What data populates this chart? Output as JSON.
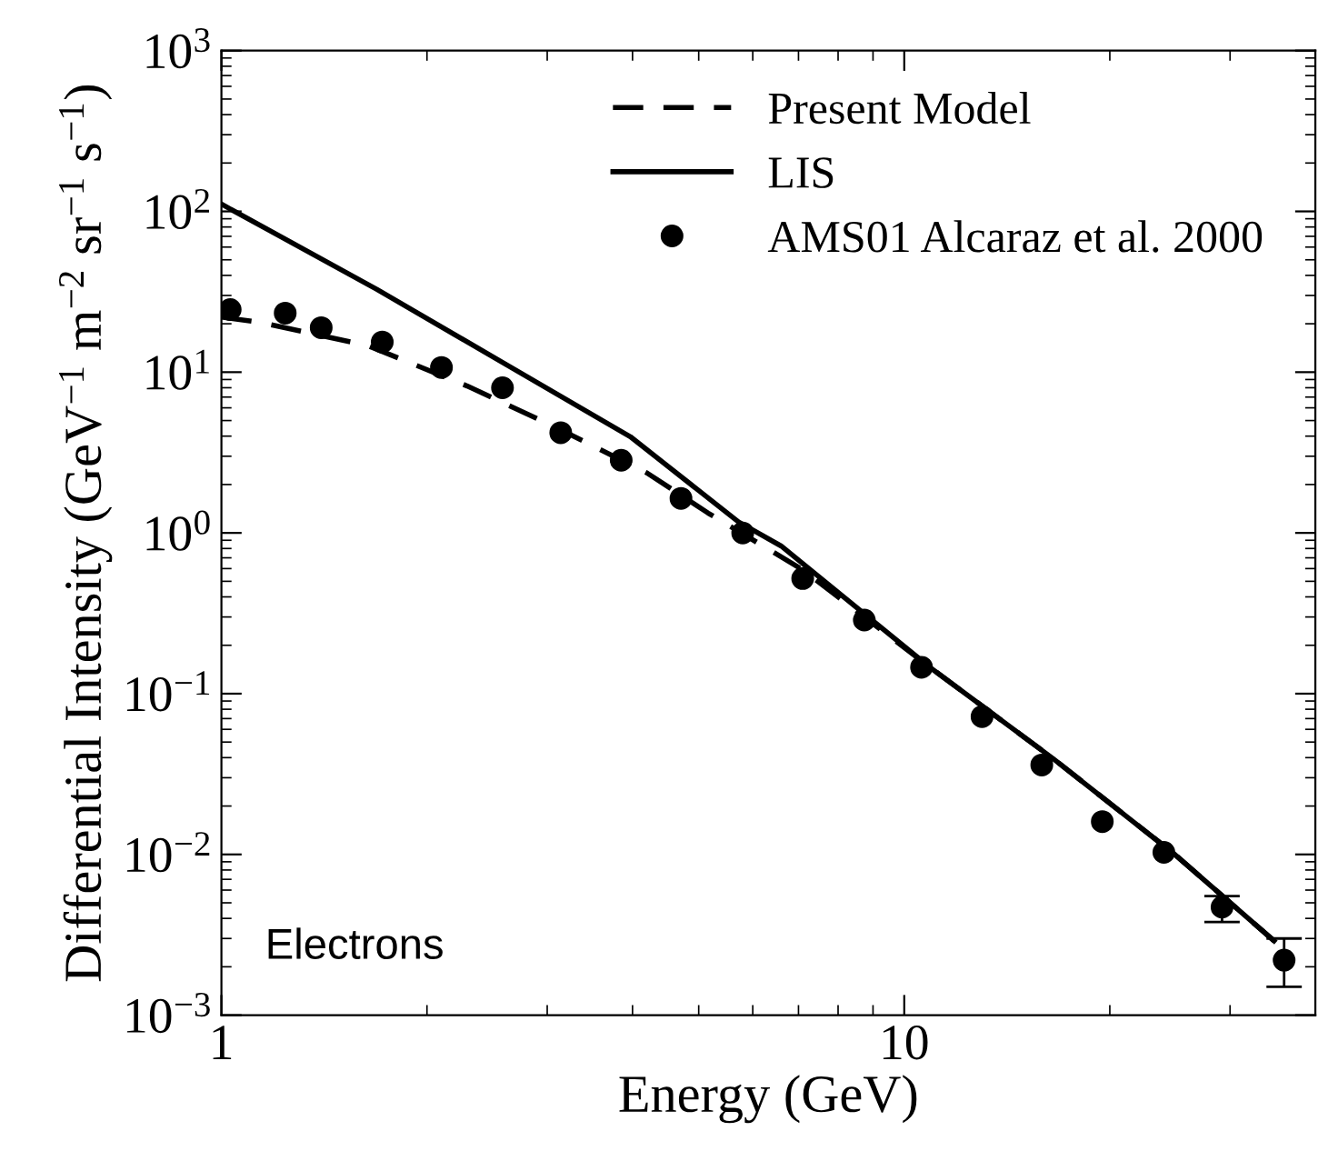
{
  "chart_data": {
    "type": "line",
    "xlabel": "Energy (GeV)",
    "ylabel": "Differential Intensity (GeV$^{−1}$ m$^{−2}$ sr$^{−1}$ s$^{−1}$)",
    "log": "xy",
    "xlim": [
      1,
      40
    ],
    "ylim": [
      0.001,
      1000
    ],
    "xticks": [
      1,
      10
    ],
    "yticks": [
      {
        "value": 0.001,
        "label": "10$^{−3}$"
      },
      {
        "value": 0.01,
        "label": "10$^{−2}$"
      },
      {
        "value": 0.1,
        "label": "10$^{−1}$"
      },
      {
        "value": 1,
        "label": "10$^{0}$"
      },
      {
        "value": 10,
        "label": "10$^{1}$"
      },
      {
        "value": 100,
        "label": "10$^{2}$"
      },
      {
        "value": 1000,
        "label": "10$^{3}$"
      }
    ],
    "grid": false,
    "legend": "top right",
    "annotations": [
      "Electrons"
    ],
    "series": [
      {
        "name": "Present Model",
        "line_style": "dashed",
        "color": "#000000",
        "x": [
          1.0,
          1.14,
          1.64,
          2.29,
          3.1,
          4.2,
          5.16,
          7.1,
          10.9,
          16.5,
          24.9,
          34.8
        ],
        "values": [
          22,
          20.4,
          14.6,
          8.2,
          4.5,
          2.36,
          1.33,
          0.59,
          0.146,
          0.0396,
          0.01,
          0.0029
        ]
      },
      {
        "name": "LIS",
        "line_style": "solid",
        "color": "#000000",
        "x": [
          1.0,
          1.69,
          2.58,
          3.97,
          5.72,
          6.6,
          10.9,
          16.5,
          24.9,
          34.8
        ],
        "values": [
          111,
          32.7,
          11.5,
          3.97,
          1.17,
          0.83,
          0.146,
          0.0396,
          0.01,
          0.0029
        ]
      },
      {
        "name": "AMS01 Alcaraz et al. 2000",
        "type": "scatter",
        "marker": "circle",
        "color": "#000000",
        "x": [
          1.03,
          1.24,
          1.4,
          1.72,
          2.1,
          2.58,
          3.14,
          3.85,
          4.71,
          5.8,
          7.1,
          8.74,
          10.6,
          13.0,
          15.9,
          19.5,
          24.0,
          29.2,
          36.0
        ],
        "values": [
          24.5,
          23.3,
          18.9,
          15.4,
          10.7,
          8.0,
          4.2,
          2.83,
          1.64,
          1.0,
          0.52,
          0.287,
          0.146,
          0.072,
          0.036,
          0.016,
          0.0103,
          0.0047,
          0.0022
        ],
        "errors": [
          null,
          null,
          null,
          null,
          null,
          null,
          null,
          null,
          null,
          null,
          null,
          null,
          null,
          null,
          null,
          null,
          null,
          [
            0.0038,
            0.0055
          ],
          [
            0.0015,
            0.003
          ]
        ]
      }
    ]
  }
}
